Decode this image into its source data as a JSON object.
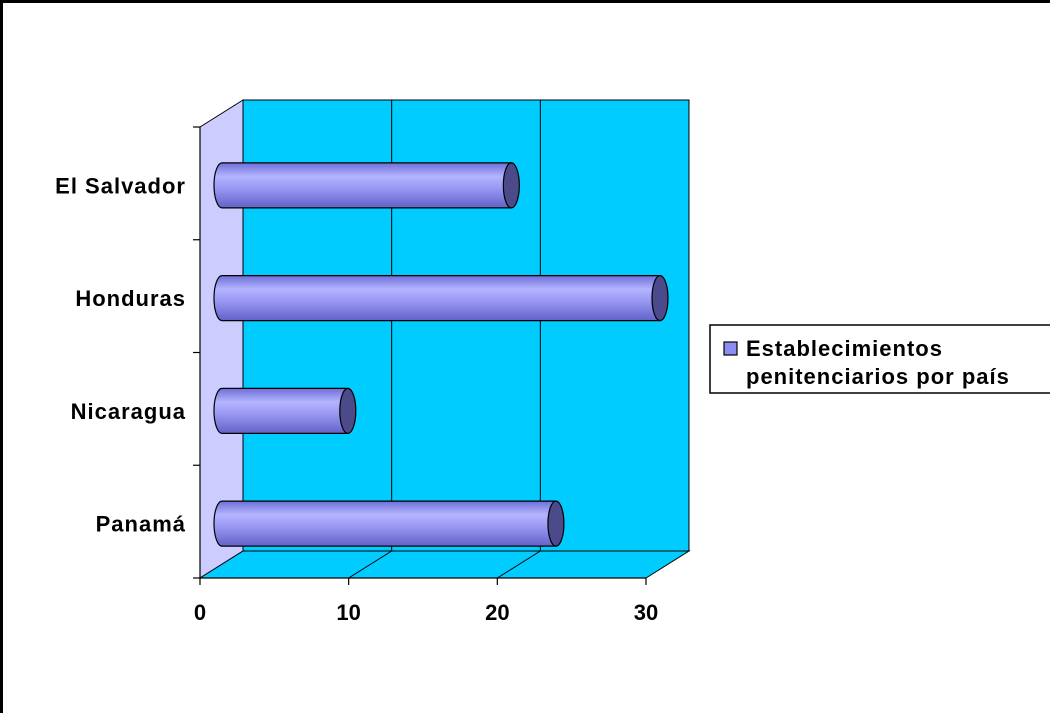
{
  "chart_data": {
    "type": "bar",
    "orientation": "horizontal",
    "style": "3d-cylinder",
    "categories": [
      "El Salvador",
      "Honduras",
      "Nicaragua",
      "Panamá"
    ],
    "series": [
      {
        "name": "Establecimientos penitenciarios por país",
        "values": [
          20,
          30,
          9,
          23
        ]
      }
    ],
    "xticks": [
      "0",
      "10",
      "20",
      "30"
    ],
    "xlim": [
      0,
      30
    ],
    "grid": true,
    "legend": {
      "position": "right",
      "lines": [
        "Establecimientos",
        "penitenciarios por país"
      ]
    },
    "colors": {
      "bar": "#8c8cf2",
      "bar_dark": "#4b4b8c",
      "wall": "#00ccff",
      "side_wall": "#ccccff",
      "floor": "#00ccff"
    }
  }
}
